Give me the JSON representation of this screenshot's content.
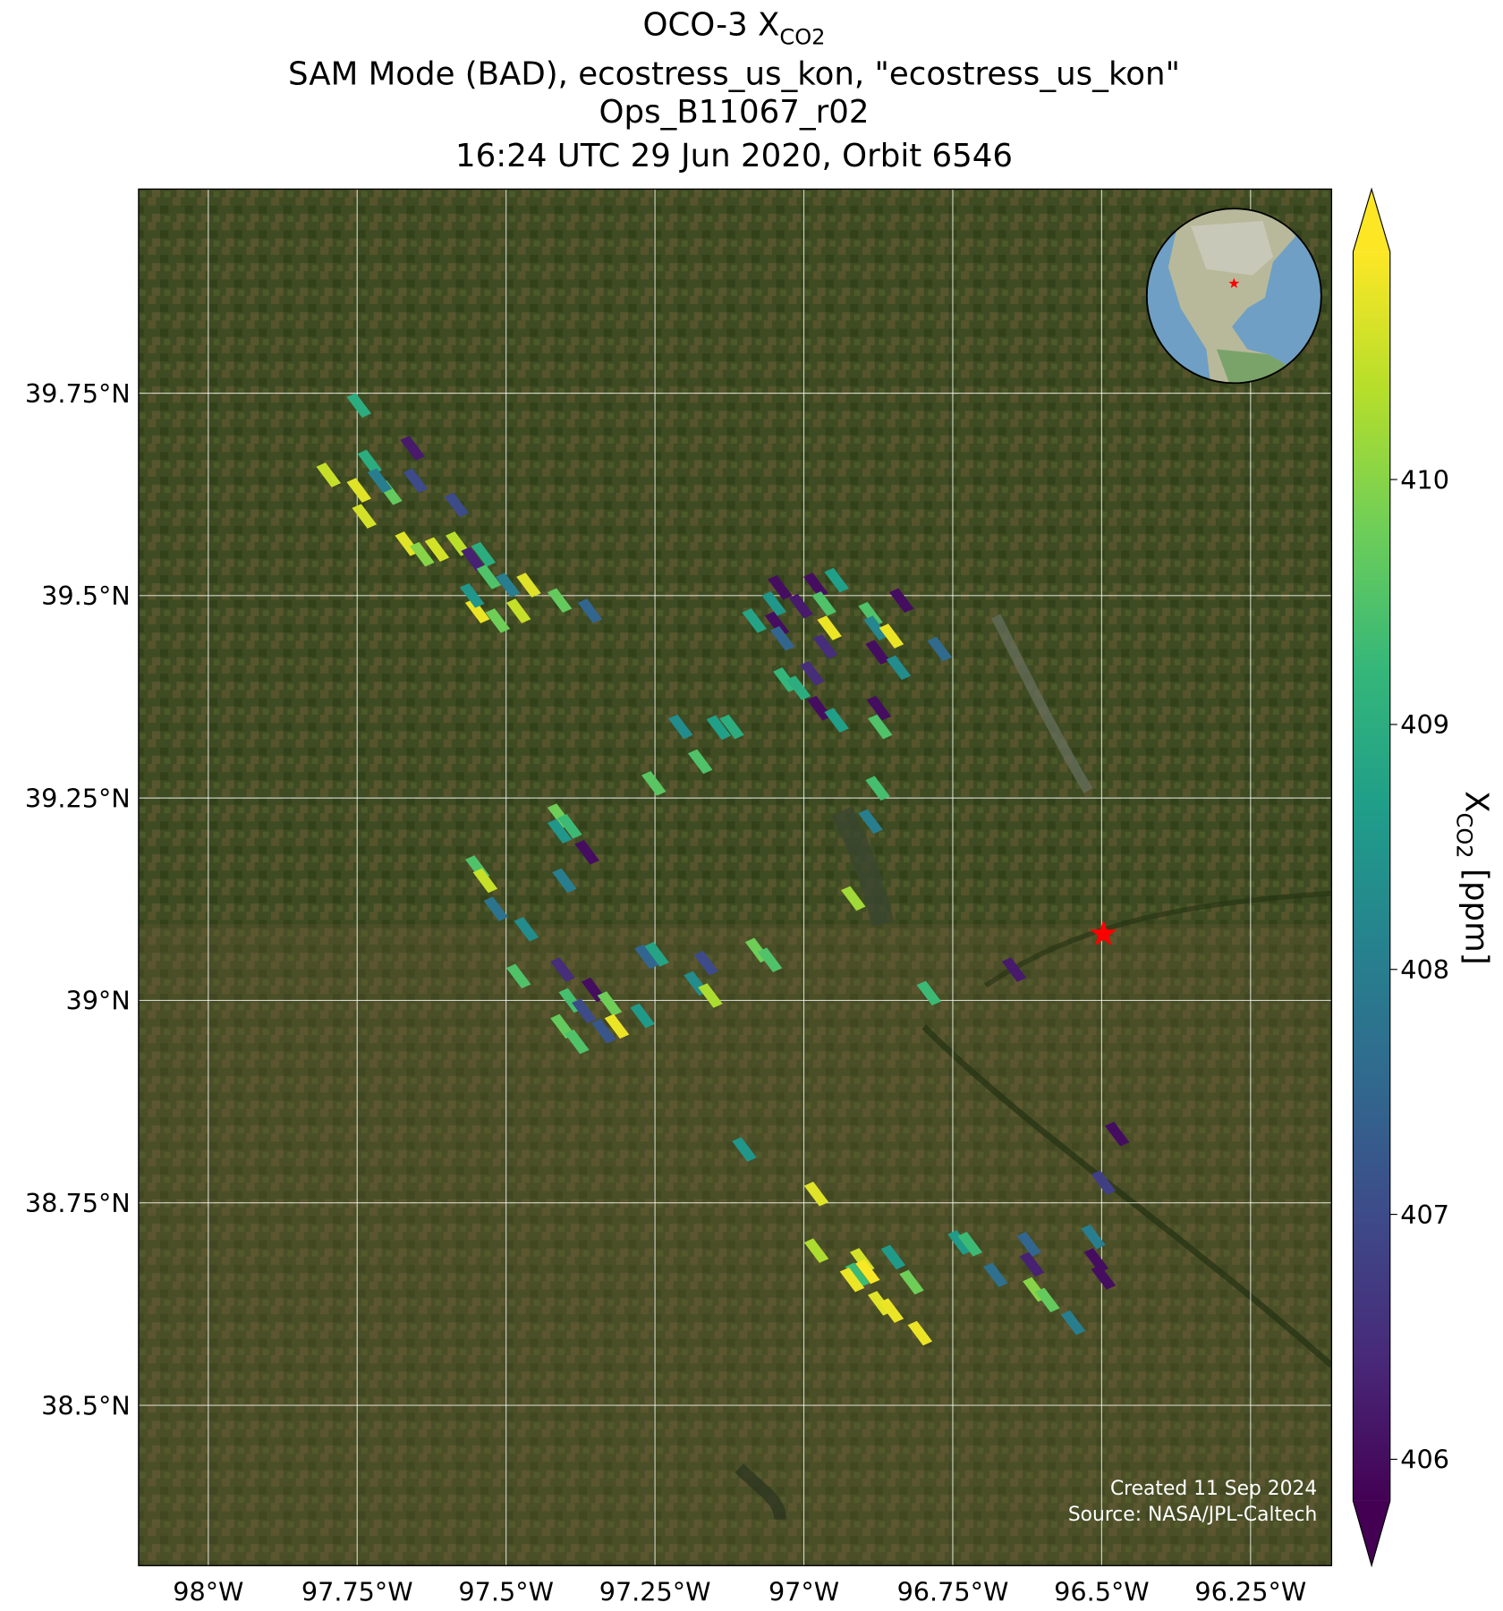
{
  "chart_data": {
    "type": "map",
    "title": {
      "text": "OCO-3 X",
      "subscript": "CO2"
    },
    "subtitle_lines": [
      "SAM Mode (BAD), ecostress_us_kon, \"ecostress_us_kon\"",
      "Ops_B11067_r02",
      "16:24 UTC 29 Jun 2020, Orbit 6546"
    ],
    "xlim": [
      -98.117,
      -96.114
    ],
    "ylim": [
      38.302,
      40.002
    ],
    "xticks": [
      {
        "value": -98,
        "label": "98°W"
      },
      {
        "value": -97.75,
        "label": "97.75°W"
      },
      {
        "value": -97.5,
        "label": "97.5°W"
      },
      {
        "value": -97.25,
        "label": "97.25°W"
      },
      {
        "value": -97,
        "label": "97°W"
      },
      {
        "value": -96.75,
        "label": "96.75°W"
      },
      {
        "value": -96.5,
        "label": "96.5°W"
      },
      {
        "value": -96.25,
        "label": "96.25°W"
      }
    ],
    "yticks": [
      {
        "value": 39.75,
        "label": "39.75°N"
      },
      {
        "value": 39.5,
        "label": "39.5°N"
      },
      {
        "value": 39.25,
        "label": "39.25°N"
      },
      {
        "value": 39,
        "label": "39°N"
      },
      {
        "value": 38.75,
        "label": "38.75°N"
      },
      {
        "value": 38.5,
        "label": "38.5°N"
      }
    ],
    "grid": true,
    "colorbar": {
      "label": {
        "text": "X",
        "subscript": "CO2",
        "unit": "[ppm]"
      },
      "clim": [
        405.83,
        410.93
      ],
      "ticks": [
        406,
        407,
        408,
        409,
        410
      ],
      "extend": "both",
      "colormap": [
        "#440154",
        "#482878",
        "#3e4989",
        "#31688e",
        "#26828e",
        "#1f9e89",
        "#35b779",
        "#6ece58",
        "#b5de2b",
        "#fde725"
      ]
    },
    "target": {
      "lon": -96.497,
      "lat": 39.082,
      "color": "#ff0000"
    },
    "annotations": [
      "Created 11 Sep 2024",
      "Source: NASA/JPL-Caltech"
    ],
    "soundings": {
      "lon": [
        -97.747,
        -97.657,
        -97.798,
        -97.729,
        -97.747,
        -97.695,
        -97.652,
        -97.712,
        -97.583,
        -97.738,
        -97.666,
        -97.641,
        -97.616,
        -97.581,
        -97.555,
        -97.538,
        -97.529,
        -97.497,
        -97.462,
        -97.479,
        -97.41,
        -97.548,
        -97.514,
        -97.359,
        -97.557,
        -97.04,
        -96.98,
        -96.945,
        -97.05,
        -97.005,
        -96.966,
        -96.888,
        -96.836,
        -97.083,
        -96.957,
        -96.879,
        -96.853,
        -97.045,
        -97.036,
        -96.876,
        -96.772,
        -96.964,
        -96.841,
        -96.986,
        -97.031,
        -97.009,
        -96.974,
        -96.945,
        -96.874,
        -96.872,
        -97.207,
        -97.143,
        -97.121,
        -97.174,
        -97.252,
        -96.876,
        -96.888,
        -97.41,
        -97.393,
        -97.41,
        -97.364,
        -97.548,
        -97.535,
        -97.402,
        -97.517,
        -96.917,
        -97.466,
        -97.078,
        -97.057,
        -97.264,
        -97.247,
        -97.164,
        -96.647,
        -97.405,
        -97.479,
        -97.181,
        -97.353,
        -96.79,
        -97.157,
        -97.391,
        -97.326,
        -97.369,
        -97.271,
        -97.405,
        -97.314,
        -97.381,
        -97.336,
        -96.474,
        -97.1,
        -96.497,
        -96.979,
        -96.514,
        -96.738,
        -96.721,
        -96.622,
        -96.979,
        -96.85,
        -96.509,
        -96.902,
        -96.617,
        -96.893,
        -96.91,
        -96.678,
        -96.919,
        -96.497,
        -96.819,
        -96.612,
        -96.591,
        -96.872,
        -96.853,
        -96.548,
        -96.805
      ],
      "lat": [
        39.735,
        39.682,
        39.649,
        39.665,
        39.63,
        39.627,
        39.642,
        39.642,
        39.612,
        39.598,
        39.564,
        39.551,
        39.557,
        39.564,
        39.545,
        39.551,
        39.523,
        39.513,
        39.513,
        39.481,
        39.494,
        39.481,
        39.469,
        39.481,
        39.5,
        39.51,
        39.513,
        39.519,
        39.49,
        39.487,
        39.49,
        39.477,
        39.494,
        39.469,
        39.46,
        39.46,
        39.45,
        39.465,
        39.447,
        39.43,
        39.434,
        39.437,
        39.411,
        39.404,
        39.396,
        39.386,
        39.361,
        39.346,
        39.361,
        39.338,
        39.338,
        39.337,
        39.338,
        39.295,
        39.268,
        39.262,
        39.221,
        39.228,
        39.215,
        39.209,
        39.183,
        39.164,
        39.148,
        39.148,
        39.113,
        39.126,
        39.088,
        39.062,
        39.05,
        39.054,
        39.057,
        39.046,
        39.038,
        39.038,
        39.03,
        39.021,
        39.013,
        39.009,
        39.006,
        39.0,
        38.996,
        38.987,
        38.981,
        38.968,
        38.968,
        38.949,
        38.962,
        38.835,
        38.816,
        38.775,
        38.761,
        38.708,
        38.701,
        38.699,
        38.699,
        38.691,
        38.683,
        38.679,
        38.679,
        38.674,
        38.665,
        38.661,
        38.661,
        38.655,
        38.658,
        38.652,
        38.643,
        38.63,
        38.626,
        38.617,
        38.602,
        38.589
      ],
      "xco2": [
        409,
        406.2,
        410.5,
        409,
        410.7,
        409.7,
        407,
        408,
        407,
        410.6,
        410.7,
        410,
        410.6,
        410.4,
        406.3,
        409,
        409.5,
        408,
        410.7,
        410.5,
        409.7,
        410.8,
        409.8,
        407.5,
        408.5,
        406,
        406,
        408.7,
        408.5,
        406.2,
        409.5,
        409.5,
        406,
        408.8,
        410.8,
        408.2,
        410.8,
        406,
        407.5,
        406,
        407.6,
        406.5,
        408.3,
        406.5,
        409.2,
        409,
        406,
        408.7,
        406,
        409.5,
        408.3,
        408.7,
        409,
        409.5,
        409.6,
        409.4,
        408,
        409.8,
        409.3,
        408.5,
        406,
        409.5,
        410.5,
        408,
        407.8,
        410.2,
        408.3,
        409.8,
        409.5,
        407.5,
        408.8,
        407,
        406.2,
        406.5,
        409.5,
        408.3,
        406,
        409.3,
        410.3,
        409.4,
        409.8,
        407,
        408.6,
        409.7,
        410.8,
        409.5,
        407.2,
        406,
        408.5,
        406.8,
        410.7,
        408,
        408.6,
        409.3,
        407.5,
        410.3,
        408.6,
        406,
        410.6,
        406.3,
        410.9,
        409.3,
        407.7,
        410.8,
        406,
        409.8,
        410,
        409.7,
        410.7,
        410.8,
        408,
        410.8
      ]
    }
  }
}
